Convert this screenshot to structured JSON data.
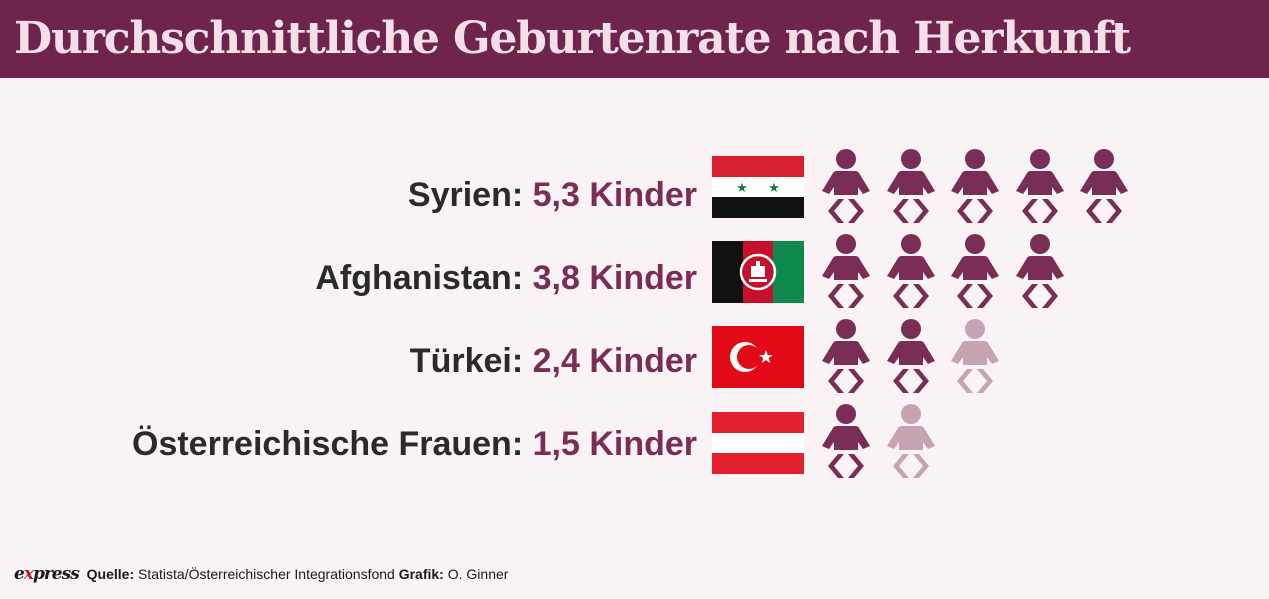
{
  "title": "Durchschnittliche Geburtenrate nach Herkunft",
  "chart_data": {
    "type": "bar",
    "categories": [
      "Syrien",
      "Afghanistan",
      "Türkei",
      "Österreichische Frauen"
    ],
    "values": [
      5.3,
      3.8,
      2.4,
      1.5
    ],
    "value_labels": [
      "5,3 Kinder",
      "3,8 Kinder",
      "2,4 Kinder",
      "1,5 Kinder"
    ],
    "title": "Durchschnittliche Geburtenrate nach Herkunft",
    "xlabel": "",
    "ylabel": ""
  },
  "rows": [
    {
      "label": "Syrien:",
      "value": "5,3 Kinder",
      "flag": "syria-flag",
      "filled": 5,
      "faded": 0
    },
    {
      "label": "Afghanistan:",
      "value": "3,8 Kinder",
      "flag": "afghanistan-flag",
      "filled": 4,
      "faded": 0
    },
    {
      "label": "Türkei:",
      "value": "2,4 Kinder",
      "flag": "turkey-flag",
      "filled": 2,
      "faded": 1
    },
    {
      "label": "Österreichische Frauen:",
      "value": "1,5 Kinder",
      "flag": "austria-flag",
      "filled": 1,
      "faded": 1
    }
  ],
  "colors": {
    "header_bg": "#6e244b",
    "title_text": "#f3dfe8",
    "value_text": "#7a2d55",
    "icon_full": "#7a2d55",
    "icon_faded": "#c6a3b4",
    "background": "#f9f3f6"
  },
  "icons": {
    "person": "baby-icon"
  },
  "footer": {
    "logo_prefix": "e",
    "logo_x": "x",
    "logo_suffix": "press",
    "source_label": "Quelle:",
    "source_value": "Statista/Österreichischer Integrationsfond",
    "graphic_label": "Grafik:",
    "graphic_value": "O. Ginner"
  }
}
